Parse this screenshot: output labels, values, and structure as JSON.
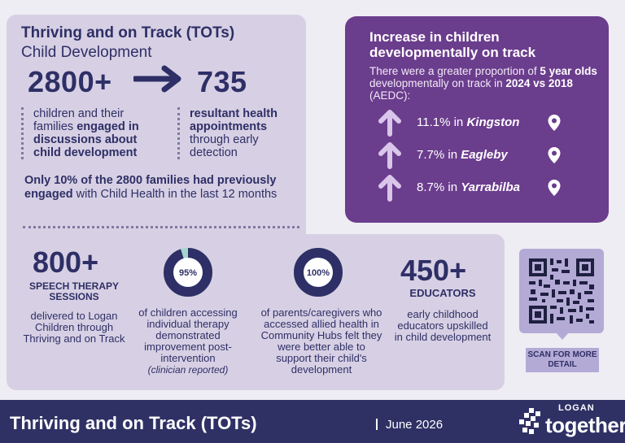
{
  "header": {
    "title": "Thriving and on Track (TOTs)",
    "subtitle": "Child Development"
  },
  "engagement": {
    "families_number": "2800+",
    "appointments_number": "735",
    "families_desc": {
      "normal_1": "children and their families ",
      "bold": "engaged in discussions about child development"
    },
    "appointments_desc": {
      "bold": "resultant health appointments",
      "normal": " through early detection"
    },
    "only_line": {
      "bold": "Only 10% of the 2800 families had previously engaged",
      "normal": " with Child Health in the last 12 months"
    }
  },
  "increase_panel": {
    "title": "Increase in children developmentally on track",
    "intro": {
      "normal_1": "There were a greater proportion of ",
      "bold_1": "5 year olds",
      "normal_2": " developmentally on track in ",
      "bold_2": "2024 vs 2018",
      "normal_3": " (AEDC):"
    },
    "locations": [
      {
        "percent": "11.1% in ",
        "place": "Kingston"
      },
      {
        "percent": "7.7% in ",
        "place": "Eagleby"
      },
      {
        "percent": "8.7% in ",
        "place": "Yarrabilba"
      }
    ]
  },
  "stats": {
    "speech": {
      "number": "800+",
      "label": "SPEECH THERAPY SESSIONS",
      "desc": "delivered to Logan Children through Thriving and on Track"
    },
    "therapy": {
      "percent_label": "95%",
      "percent_value": 95,
      "desc": "of children accessing individual therapy demonstrated improvement post-intervention",
      "note": "(clinician reported)"
    },
    "parents": {
      "percent_label": "100%",
      "percent_value": 100,
      "desc": "of parents/caregivers who accessed allied health in Community Hubs felt they were better able to support their child's development"
    },
    "educators": {
      "number": "450+",
      "label": "EDUCATORS",
      "desc": "early childhood educators upskilled in child development"
    }
  },
  "qr": {
    "label": "SCAN FOR MORE DETAIL"
  },
  "footer": {
    "title": "Thriving and on Track (TOTs)",
    "date": "June 2026",
    "logo_top": "LOGAN",
    "logo_bottom": "together"
  },
  "colors": {
    "navy": "#2e2f66",
    "lavender": "#d7d0e4",
    "purple": "#6b3d8d",
    "ring_accent": "#a4d6cf"
  }
}
